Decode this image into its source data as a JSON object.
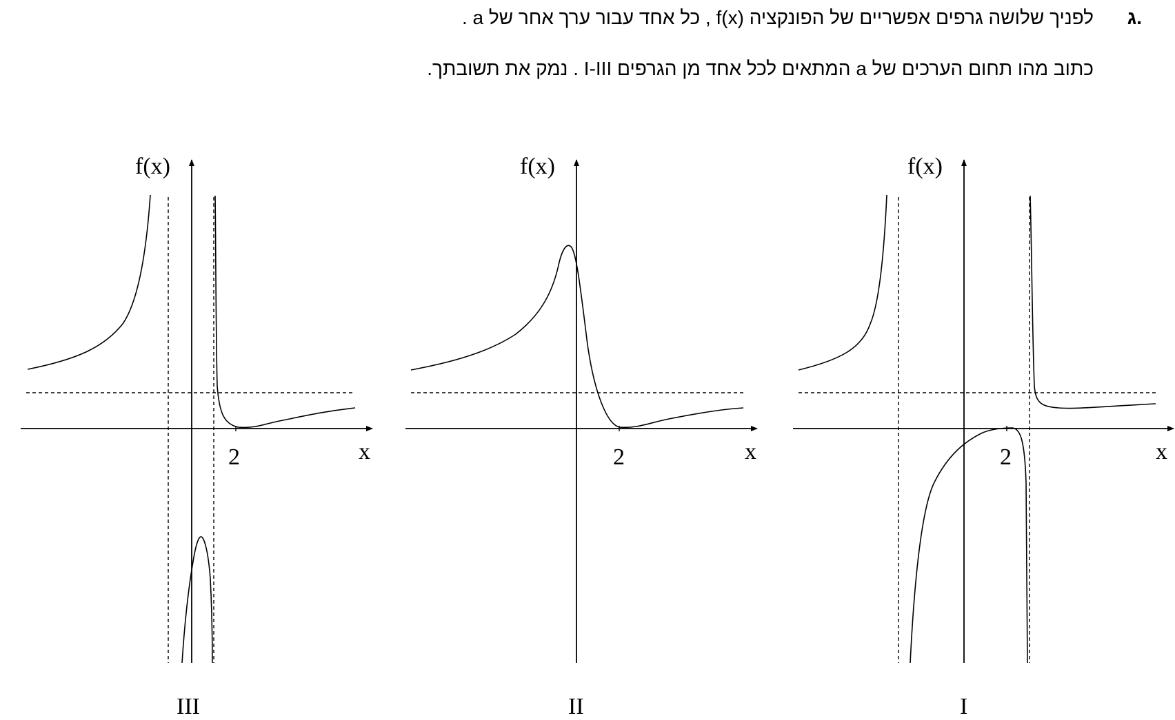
{
  "question": {
    "label": "ג.",
    "line1": "לפניך שלושה גרפים אפשריים של הפונקציה  f(x) , כל אחד עבור ערך אחר של  a .",
    "line2": "כתוב מהו תחום הערכים של  a  המתאים לכל אחד מן הגרפים  I-III .  נמק את תשובתך."
  },
  "graphs": [
    {
      "id": "III",
      "caption": "III",
      "y_axis_label": "f(x)",
      "x_axis_label": "x",
      "x_tick_label": "2"
    },
    {
      "id": "II",
      "caption": "II",
      "y_axis_label": "f(x)",
      "x_axis_label": "x",
      "x_tick_label": "2"
    },
    {
      "id": "I",
      "caption": "I",
      "y_axis_label": "f(x)",
      "x_axis_label": "x",
      "x_tick_label": "2"
    }
  ]
}
